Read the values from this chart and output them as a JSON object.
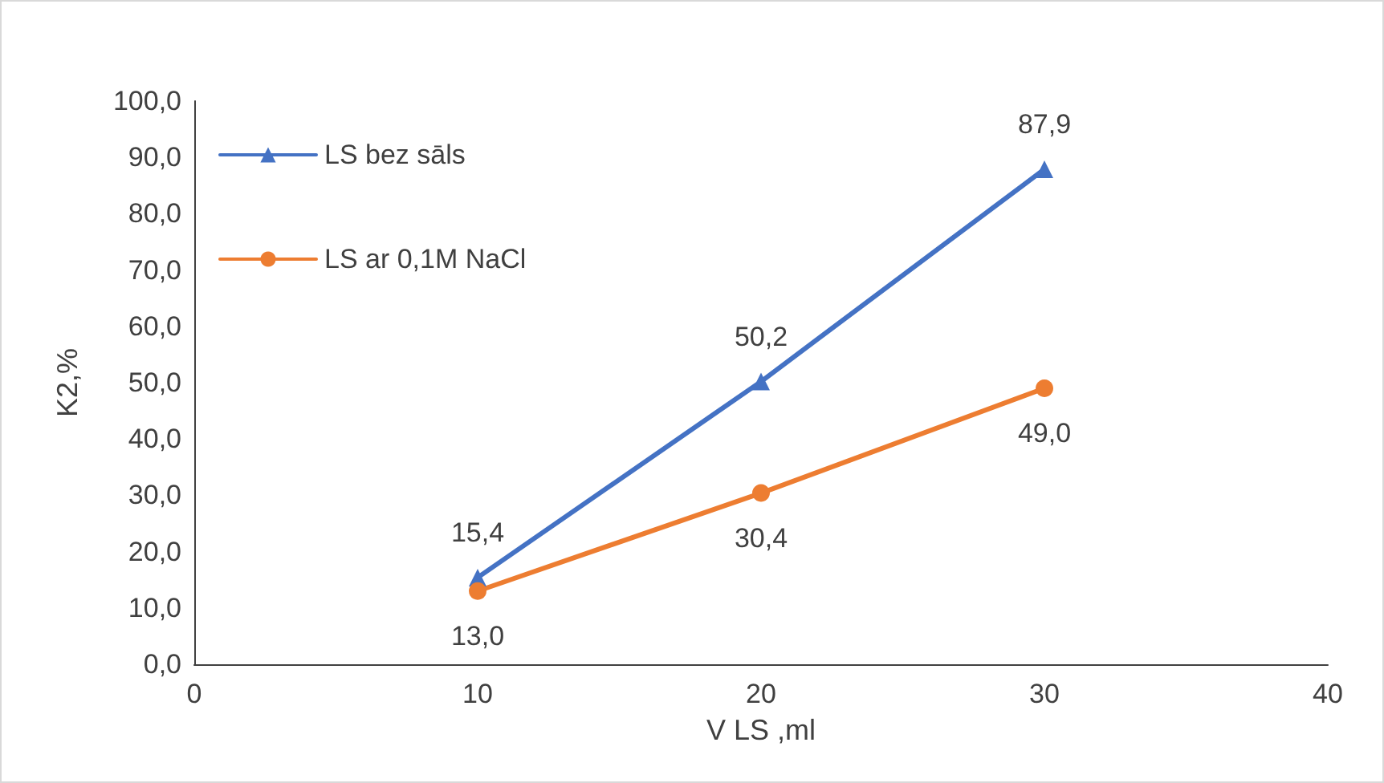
{
  "chart_data": {
    "type": "line",
    "xlabel": "V LS ,ml",
    "ylabel": "K2,%",
    "x": [
      10,
      20,
      30
    ],
    "series": [
      {
        "name": "LS bez sāls",
        "color": "#4472c4",
        "marker": "triangle",
        "values": [
          15.4,
          50.2,
          87.9
        ],
        "value_labels": [
          "15,4",
          "50,2",
          "87,9"
        ]
      },
      {
        "name": "LS ar 0,1M NaCl",
        "color": "#ed7d31",
        "marker": "circle",
        "values": [
          13.0,
          30.4,
          49.0
        ],
        "value_labels": [
          "13,0",
          "30,4",
          "49,0"
        ]
      }
    ],
    "xlim": [
      0,
      40
    ],
    "xticks": [
      0,
      10,
      20,
      30,
      40
    ],
    "ylim": [
      0,
      100
    ],
    "yticks": [
      {
        "value": 0,
        "label": "0,0"
      },
      {
        "value": 10,
        "label": "10,0"
      },
      {
        "value": 20,
        "label": "20,0"
      },
      {
        "value": 30,
        "label": "30,0"
      },
      {
        "value": 40,
        "label": "40,0"
      },
      {
        "value": 50,
        "label": "50,0"
      },
      {
        "value": 60,
        "label": "60,0"
      },
      {
        "value": 70,
        "label": "70,0"
      },
      {
        "value": 80,
        "label": "80,0"
      },
      {
        "value": 90,
        "label": "90,0"
      },
      {
        "value": 100,
        "label": "100,0"
      }
    ],
    "grid": false,
    "legend": "top left",
    "line_style": "solid"
  }
}
